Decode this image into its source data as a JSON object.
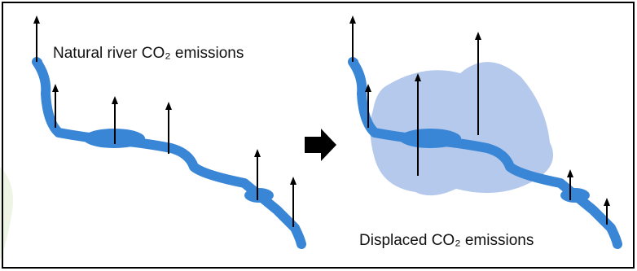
{
  "labels": {
    "natural": "Natural river CO₂ emissions",
    "displaced": "Displaced CO₂ emissions"
  }
}
